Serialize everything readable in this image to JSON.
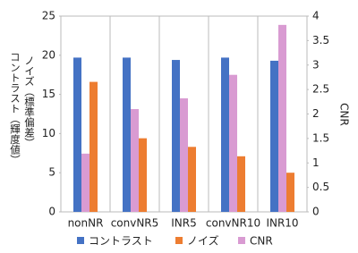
{
  "chart_data": {
    "type": "bar",
    "ylabel": [
      "ノイズ（標準偏差）",
      "コントラスト（輝度値）"
    ],
    "y2label": "CNR",
    "categories": [
      "nonNR",
      "convNR5",
      "INR5",
      "convNR10",
      "INR10"
    ],
    "series": [
      {
        "name": "コントラスト",
        "color": "#4472c4",
        "values": [
          19.7,
          19.7,
          19.4,
          19.7,
          19.3
        ]
      },
      {
        "name": "ノイズ",
        "color": "#ed7d31",
        "values": [
          16.6,
          9.4,
          8.3,
          7.1,
          5.0
        ]
      },
      {
        "name": "CNR",
        "color": "#d99bd2",
        "axis": "y2",
        "values": [
          1.19,
          2.1,
          2.32,
          2.8,
          3.82
        ]
      }
    ],
    "ylim": [
      0,
      25
    ],
    "yticks": [
      0,
      5,
      10,
      15,
      20,
      25
    ],
    "y2lim": [
      0,
      4
    ],
    "y2ticks": [
      0,
      0.5,
      1,
      1.5,
      2,
      2.5,
      3,
      3.5,
      4
    ],
    "legend": "bottom"
  }
}
